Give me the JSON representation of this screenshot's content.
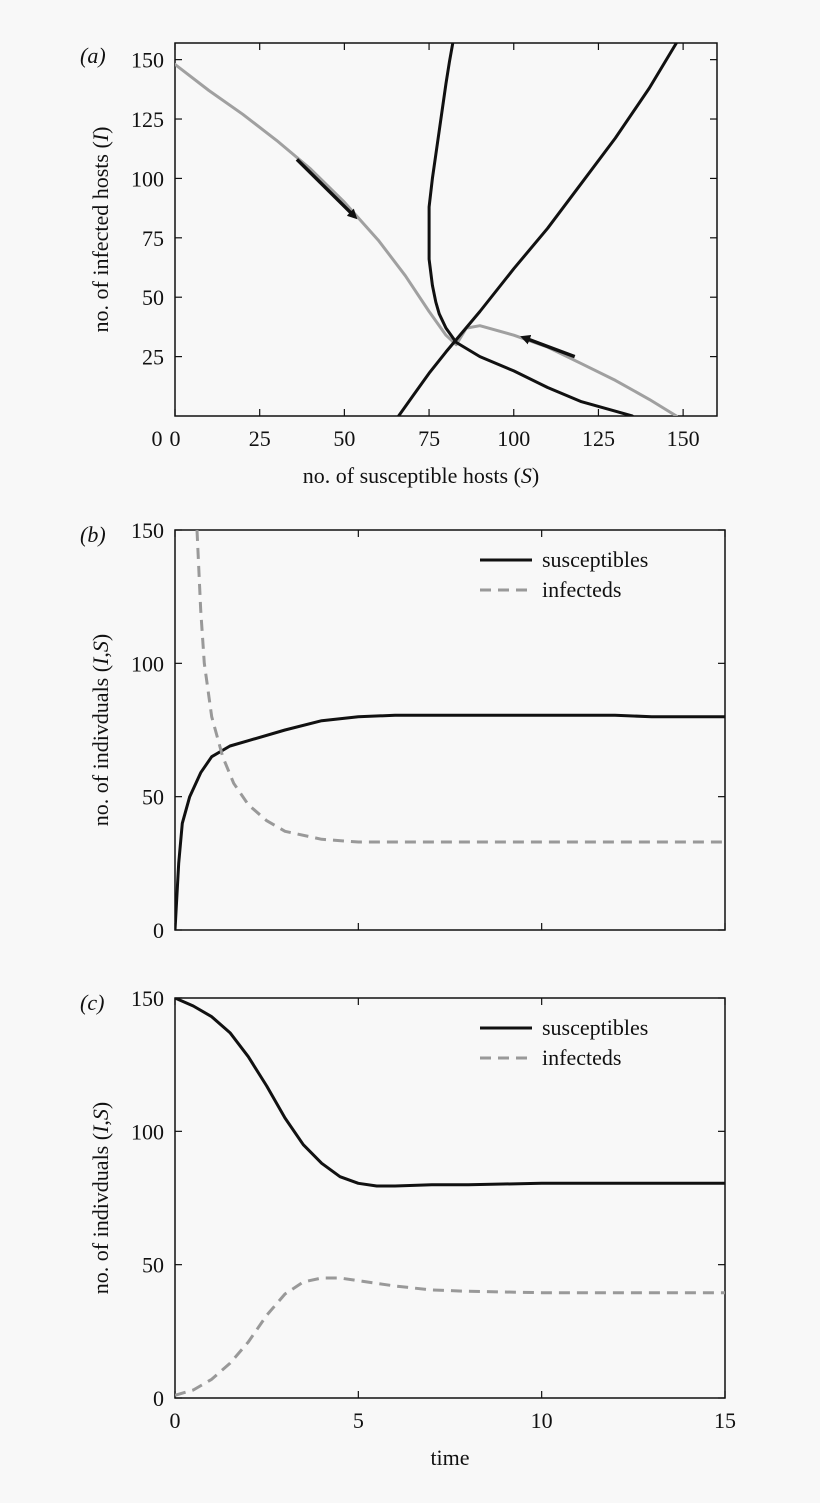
{
  "chart_data": [
    {
      "panel": "a",
      "type": "line",
      "panel_label": "(a)",
      "xlabel": "no. of susceptible hosts (S)",
      "ylabel": "no. of infected hosts (I)",
      "xlim": [
        0,
        160
      ],
      "ylim": [
        0,
        157
      ],
      "x_ticks": [
        0,
        25,
        50,
        75,
        100,
        125,
        150
      ],
      "y_ticks": [
        25,
        50,
        75,
        100,
        125,
        150
      ],
      "grid": false,
      "colors": {
        "trajectory": "#a0a0a0",
        "nullcline": "#111111",
        "arrow": "#111111"
      },
      "series": [
        {
          "role": "trajectory",
          "color": "#a0a0a0",
          "points": [
            [
              0,
              148
            ],
            [
              10,
              137
            ],
            [
              20,
              127
            ],
            [
              30,
              116
            ],
            [
              40,
              104
            ],
            [
              50,
              90
            ],
            [
              60,
              74
            ],
            [
              68,
              59
            ],
            [
              75,
              44
            ],
            [
              80,
              34
            ],
            [
              83,
              30
            ],
            [
              86,
              37
            ],
            [
              90,
              38
            ],
            [
              100,
              34
            ],
            [
              110,
              29
            ],
            [
              120,
              22
            ],
            [
              130,
              15
            ],
            [
              140,
              7
            ],
            [
              148,
              0
            ]
          ]
        },
        {
          "role": "nullcline",
          "color": "#111111",
          "points": [
            [
              82,
              157
            ],
            [
              81,
              149
            ],
            [
              80,
              140
            ],
            [
              79,
              130
            ],
            [
              78,
              120
            ],
            [
              77,
              110
            ],
            [
              76,
              100
            ],
            [
              75,
              88
            ],
            [
              75,
              78
            ],
            [
              75,
              66
            ],
            [
              76,
              55
            ],
            [
              77,
              48
            ],
            [
              78,
              43
            ],
            [
              80,
              37
            ],
            [
              83,
              31
            ],
            [
              90,
              25
            ],
            [
              100,
              19
            ],
            [
              110,
              12
            ],
            [
              120,
              6
            ],
            [
              130,
              2
            ],
            [
              135,
              0
            ]
          ]
        },
        {
          "role": "nullcline",
          "color": "#111111",
          "points": [
            [
              66,
              0
            ],
            [
              70,
              8
            ],
            [
              75,
              18
            ],
            [
              80,
              27
            ],
            [
              90,
              44
            ],
            [
              100,
              62
            ],
            [
              110,
              79
            ],
            [
              120,
              98
            ],
            [
              130,
              117
            ],
            [
              140,
              138
            ],
            [
              148,
              157
            ]
          ]
        }
      ],
      "arrows": [
        {
          "from": [
            36,
            108
          ],
          "to": [
            53,
            84
          ]
        },
        {
          "from": [
            118,
            25
          ],
          "to": [
            103,
            33
          ]
        }
      ]
    },
    {
      "panel": "b",
      "type": "line",
      "panel_label": "(b)",
      "xlabel": "",
      "ylabel": "no. of indivduals (I,S)",
      "xlim": [
        0,
        15
      ],
      "ylim": [
        0,
        150
      ],
      "x_ticks": [
        0,
        5,
        10,
        15
      ],
      "y_ticks": [
        0,
        50,
        100,
        150
      ],
      "show_x_tick_labels": false,
      "grid": false,
      "legend": {
        "placement": "top-right",
        "entries": [
          "susceptibles",
          "infecteds"
        ]
      },
      "series": [
        {
          "name": "susceptibles",
          "style": "solid",
          "color": "#111111",
          "points": [
            [
              0,
              0
            ],
            [
              0.1,
              25
            ],
            [
              0.2,
              40
            ],
            [
              0.4,
              50
            ],
            [
              0.7,
              59
            ],
            [
              1,
              65
            ],
            [
              1.5,
              69
            ],
            [
              2,
              71
            ],
            [
              3,
              75
            ],
            [
              4,
              78.5
            ],
            [
              5,
              80
            ],
            [
              6,
              80.5
            ],
            [
              8,
              80.5
            ],
            [
              10,
              80.5
            ],
            [
              12,
              80.5
            ],
            [
              13,
              80
            ],
            [
              15,
              80
            ]
          ]
        },
        {
          "name": "infecteds",
          "style": "dashed",
          "color": "#999999",
          "points": [
            [
              0.6,
              150
            ],
            [
              0.7,
              120
            ],
            [
              0.8,
              100
            ],
            [
              1,
              80
            ],
            [
              1.3,
              65
            ],
            [
              1.6,
              55
            ],
            [
              2,
              47
            ],
            [
              2.5,
              41
            ],
            [
              3,
              37
            ],
            [
              4,
              34
            ],
            [
              5,
              33
            ],
            [
              7,
              33
            ],
            [
              9,
              33
            ],
            [
              11,
              33
            ],
            [
              13,
              33
            ],
            [
              15,
              33
            ]
          ]
        }
      ]
    },
    {
      "panel": "c",
      "type": "line",
      "panel_label": "(c)",
      "xlabel": "time",
      "ylabel": "no. of indivduals (I,S)",
      "xlim": [
        0,
        15
      ],
      "ylim": [
        0,
        150
      ],
      "x_ticks": [
        0,
        5,
        10,
        15
      ],
      "y_ticks": [
        0,
        50,
        100,
        150
      ],
      "grid": false,
      "legend": {
        "placement": "top-right",
        "entries": [
          "susceptibles",
          "infecteds"
        ]
      },
      "series": [
        {
          "name": "susceptibles",
          "style": "solid",
          "color": "#111111",
          "points": [
            [
              0,
              150
            ],
            [
              0.5,
              147
            ],
            [
              1,
              143
            ],
            [
              1.5,
              137
            ],
            [
              2,
              128
            ],
            [
              2.5,
              117
            ],
            [
              3,
              105
            ],
            [
              3.5,
              95
            ],
            [
              4,
              88
            ],
            [
              4.5,
              83
            ],
            [
              5,
              80.5
            ],
            [
              5.5,
              79.5
            ],
            [
              6,
              79.5
            ],
            [
              7,
              80
            ],
            [
              8,
              80
            ],
            [
              10,
              80.5
            ],
            [
              12,
              80.5
            ],
            [
              15,
              80.5
            ]
          ]
        },
        {
          "name": "infecteds",
          "style": "dashed",
          "color": "#999999",
          "points": [
            [
              0,
              1
            ],
            [
              0.5,
              3
            ],
            [
              1,
              7
            ],
            [
              1.5,
              13
            ],
            [
              2,
              21
            ],
            [
              2.5,
              31
            ],
            [
              3,
              39
            ],
            [
              3.5,
              43.5
            ],
            [
              4,
              45
            ],
            [
              4.5,
              45
            ],
            [
              5,
              44
            ],
            [
              6,
              42
            ],
            [
              7,
              40.5
            ],
            [
              8,
              40
            ],
            [
              10,
              39.5
            ],
            [
              12,
              39.5
            ],
            [
              15,
              39.5
            ]
          ]
        }
      ]
    }
  ]
}
